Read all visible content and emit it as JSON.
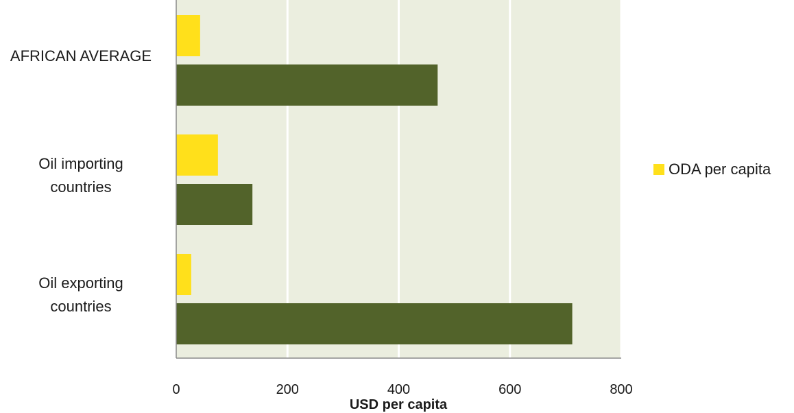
{
  "chart_data": {
    "type": "bar",
    "orientation": "horizontal",
    "categories": [
      "AFRICAN AVERAGE",
      "Oil importing countries",
      "Oil exporting countries"
    ],
    "category_label_lines": [
      [
        "AFRICAN AVERAGE"
      ],
      [
        "Oil importing",
        "countries"
      ],
      [
        "Oil exporting",
        "countries"
      ]
    ],
    "series": [
      {
        "name": "ODA per capita",
        "values": [
          43,
          75,
          27
        ],
        "color": "#ffe01b"
      },
      {
        "values": [
          470,
          137,
          712
        ],
        "color": "#52632a"
      }
    ],
    "xlabel": "USD per capita",
    "xlim": [
      0,
      800
    ],
    "xticks": [
      0,
      200,
      400,
      600,
      800
    ],
    "grid": true,
    "legend": "right",
    "plot_background": "#ebeedf",
    "gridline_color": "#ffffff"
  }
}
